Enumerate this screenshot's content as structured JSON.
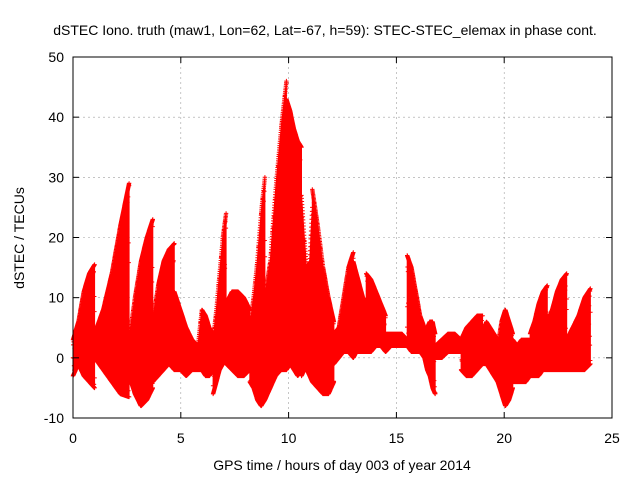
{
  "chart_data": {
    "type": "scatter",
    "title": "dSTEC Iono. truth (maw1, Lon=62, Lat=-67, h=59): STEC-STEC_elemax in phase cont.",
    "xlabel": "GPS time / hours of day 003 of year 2014",
    "ylabel": "dSTEC  / TECUs",
    "xlim": [
      0,
      25
    ],
    "ylim": [
      -10,
      50
    ],
    "x_ticks": [
      0,
      5,
      10,
      15,
      20,
      25
    ],
    "x_tick_labels": [
      "0",
      "5",
      "10",
      "15",
      "20",
      "25"
    ],
    "y_ticks": [
      -10,
      0,
      10,
      20,
      30,
      40,
      50
    ],
    "y_tick_labels": [
      "-10",
      "0",
      "10",
      "20",
      "30",
      "40",
      "50"
    ],
    "grid": true,
    "marker": "plus",
    "series_color": "#ff0000",
    "series": [
      {
        "arcs": [
          {
            "start": 0.0,
            "end": 1.0,
            "low": [
              -3,
              -1,
              -3,
              -4,
              -5
            ],
            "high": [
              3,
              6,
              11,
              14,
              15.5
            ]
          },
          {
            "start": 1.0,
            "end": 2.6,
            "low": [
              0,
              -2,
              -4,
              -6,
              -6.5
            ],
            "high": [
              4,
              8,
              14,
              22,
              29
            ]
          },
          {
            "start": 2.6,
            "end": 3.7,
            "low": [
              -3,
              -6,
              -8,
              -7,
              -5
            ],
            "high": [
              3,
              10,
              16,
              20,
              23
            ]
          },
          {
            "start": 3.7,
            "end": 4.7,
            "low": [
              -4,
              -3,
              -2,
              -1,
              -2
            ],
            "high": [
              6,
              12,
              16,
              18,
              19
            ]
          },
          {
            "start": 4.7,
            "end": 5.8,
            "low": [
              -2,
              -2,
              -3,
              -2,
              -2
            ],
            "high": [
              11,
              8,
              5,
              3,
              2
            ]
          },
          {
            "start": 5.8,
            "end": 6.5,
            "low": [
              -2,
              -2,
              -3,
              -3,
              -2
            ],
            "high": [
              2,
              8,
              7,
              5,
              4
            ]
          },
          {
            "start": 6.5,
            "end": 7.1,
            "low": [
              -6,
              -4,
              -2,
              -1,
              0
            ],
            "high": [
              3,
              8,
              14,
              20,
              24
            ]
          },
          {
            "start": 7.1,
            "end": 8.2,
            "low": [
              -1,
              -2,
              -3,
              -3,
              -2
            ],
            "high": [
              9,
              11,
              11,
              10,
              8
            ]
          },
          {
            "start": 8.2,
            "end": 8.9,
            "low": [
              -4,
              -5,
              -7,
              -8,
              -7
            ],
            "high": [
              5,
              10,
              16,
              24,
              30
            ]
          },
          {
            "start": 8.9,
            "end": 9.9,
            "low": [
              -7,
              -5,
              -3,
              -2,
              -2
            ],
            "high": [
              10,
              16,
              28,
              38,
              46
            ]
          },
          {
            "start": 9.9,
            "end": 10.6,
            "low": [
              -2,
              -1,
              -2,
              -3,
              -2
            ],
            "high": [
              43,
              41,
              38,
              36,
              35
            ]
          },
          {
            "start": 10.6,
            "end": 11.1,
            "low": [
              -3,
              -2,
              -2,
              -3,
              -4
            ],
            "high": [
              27,
              20,
              14,
              16,
              25
            ]
          },
          {
            "start": 11.1,
            "end": 12.1,
            "low": [
              -4,
              -5,
              -6,
              -6,
              -4
            ],
            "high": [
              28,
              22,
              15,
              10,
              6
            ]
          },
          {
            "start": 12.1,
            "end": 13.0,
            "low": [
              -1,
              0,
              1,
              1,
              0
            ],
            "high": [
              4,
              5,
              10,
              15,
              17.5
            ]
          },
          {
            "start": 13.0,
            "end": 13.6,
            "low": [
              0,
              1,
              1,
              1,
              1
            ],
            "high": [
              16,
              14,
              12,
              10,
              9
            ]
          },
          {
            "start": 13.6,
            "end": 14.5,
            "low": [
              1,
              1,
              2,
              2,
              1
            ],
            "high": [
              14,
              13,
              11,
              9,
              7
            ]
          },
          {
            "start": 14.5,
            "end": 15.5,
            "low": [
              1,
              2,
              2,
              2,
              2
            ],
            "high": [
              4,
              4,
              4,
              4,
              3
            ]
          },
          {
            "start": 15.5,
            "end": 16.3,
            "low": [
              2,
              1,
              1,
              1,
              0
            ],
            "high": [
              17,
              15,
              11,
              7,
              5
            ]
          },
          {
            "start": 16.3,
            "end": 16.8,
            "low": [
              0,
              -2,
              -3,
              -5,
              -6
            ],
            "high": [
              5,
              5,
              6,
              6,
              4
            ]
          },
          {
            "start": 16.8,
            "end": 18.0,
            "low": [
              0,
              0,
              1,
              1,
              1
            ],
            "high": [
              2,
              3,
              4,
              4,
              3
            ]
          },
          {
            "start": 18.0,
            "end": 19.0,
            "low": [
              -2,
              -3,
              -3,
              -2,
              -1
            ],
            "high": [
              3,
              5,
              6,
              7,
              7
            ]
          },
          {
            "start": 19.0,
            "end": 19.7,
            "low": [
              -1,
              -1,
              -2,
              -3,
              -4
            ],
            "high": [
              4,
              6,
              5,
              4,
              3
            ]
          },
          {
            "start": 19.7,
            "end": 20.4,
            "low": [
              -4,
              -6,
              -8,
              -7,
              -5
            ],
            "high": [
              2,
              6,
              8,
              6,
              4
            ]
          },
          {
            "start": 20.4,
            "end": 21.2,
            "low": [
              -4,
              -4,
              -4,
              -4,
              -3
            ],
            "high": [
              3,
              2,
              3,
              3,
              3
            ]
          },
          {
            "start": 21.2,
            "end": 22.0,
            "low": [
              -3,
              -3,
              -3,
              -2,
              -2
            ],
            "high": [
              4,
              6,
              9,
              11,
              12
            ]
          },
          {
            "start": 22.0,
            "end": 22.9,
            "low": [
              -2,
              -2,
              -2,
              -2,
              -2
            ],
            "high": [
              6,
              8,
              11,
              13,
              14
            ]
          },
          {
            "start": 22.9,
            "end": 24.0,
            "low": [
              -2,
              -2,
              -2,
              -2,
              -1
            ],
            "high": [
              3,
              5,
              7,
              10,
              11.5
            ]
          }
        ]
      }
    ]
  }
}
